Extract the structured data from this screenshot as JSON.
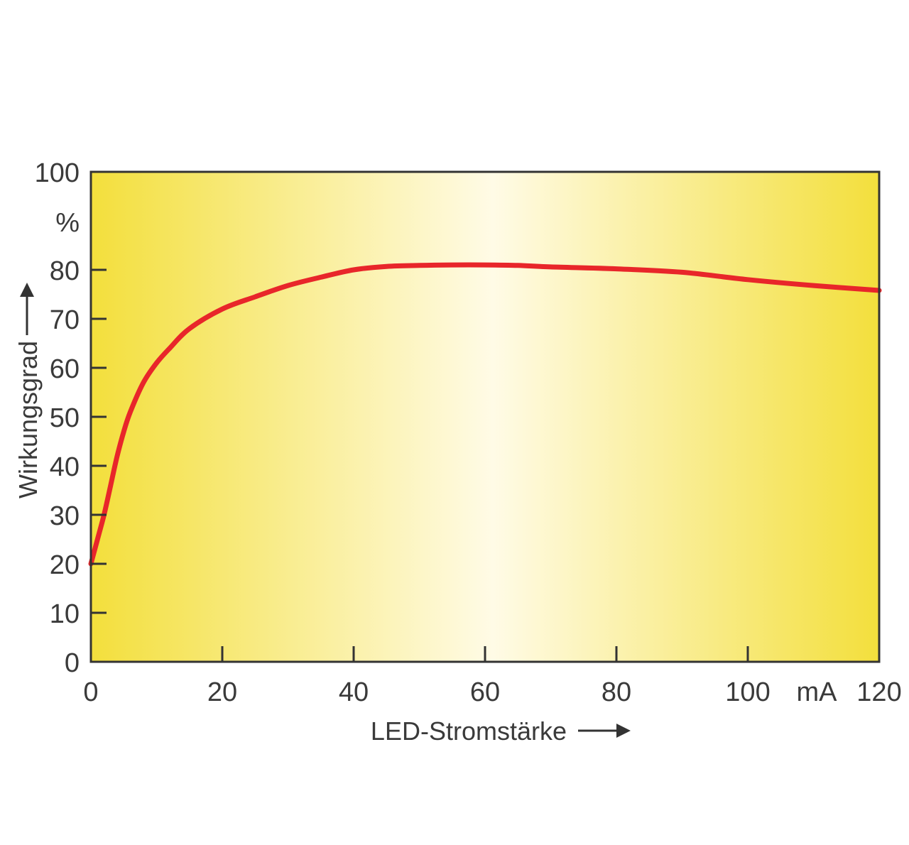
{
  "chart_data": {
    "type": "line",
    "title": "",
    "xlabel": "LED-Stromstärke",
    "ylabel": "Wirkungsgrad",
    "xunit": "mA",
    "yunit": "%",
    "xlim": [
      0,
      120
    ],
    "ylim": [
      0,
      100
    ],
    "xticks": [
      0,
      20,
      40,
      60,
      80,
      100,
      120
    ],
    "yticks": [
      0,
      10,
      20,
      30,
      40,
      50,
      60,
      70,
      80,
      100
    ],
    "grid": false,
    "series": [
      {
        "color": "#e8262a",
        "x": [
          0,
          1,
          2,
          3,
          4,
          5,
          6,
          8,
          10,
          12,
          15,
          20,
          25,
          30,
          35,
          40,
          45,
          50,
          55,
          60,
          65,
          70,
          80,
          90,
          100,
          110,
          120
        ],
        "y": [
          20,
          25,
          30,
          36,
          42,
          47,
          51,
          57,
          61,
          64,
          68,
          72,
          74.5,
          76.8,
          78.5,
          80,
          80.7,
          80.9,
          81,
          81,
          80.9,
          80.6,
          80.2,
          79.5,
          78,
          76.8,
          75.8
        ]
      }
    ],
    "colors": {
      "background_edge": "#f3df3c",
      "background_center": "#fffbe6",
      "axis": "#333333",
      "text": "#3a3a3a"
    }
  }
}
